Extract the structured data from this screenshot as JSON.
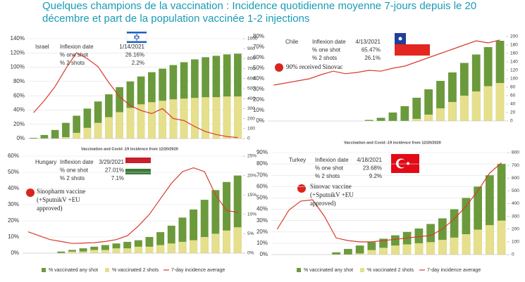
{
  "title": [
    "Quelques champions de la vaccination : Incidence quotidienne moyenne 7-jours depuis le 20",
    "décembre et part de  la population vaccinée 1-2 injections"
  ],
  "captions": [
    "Vaccination and Covid -19 incidence from 12/20/2020",
    "Vaccination and Covid -19 incidence from 12/20/2020"
  ],
  "chart_data": [
    {
      "type": "bar-line",
      "country": "Israel",
      "info": [
        [
          "Inflexion date",
          "1/14/2021"
        ],
        [
          "% one shot",
          "26.16%"
        ],
        [
          "% 2 shots",
          "2.2%"
        ]
      ],
      "categories": [
        null,
        null,
        null,
        null,
        null,
        null,
        null,
        null,
        null,
        null,
        null,
        null,
        null,
        null,
        null,
        null,
        null,
        null,
        null,
        null
      ],
      "ylim": [
        0,
        140
      ],
      "yticks": [
        {
          "value": 0,
          "label": "0%"
        },
        {
          "value": 20,
          "label": "20%"
        },
        {
          "value": 40,
          "label": "40%"
        },
        {
          "value": 60,
          "label": "60%"
        },
        {
          "value": 80,
          "label": "80%"
        },
        {
          "value": 100,
          "label": "100%"
        },
        {
          "value": 120,
          "label": "120%"
        },
        {
          "value": 140,
          "label": "140%"
        }
      ],
      "y2lim": [
        0,
        1000
      ],
      "y2ticks": [
        0,
        100,
        200,
        300,
        400,
        500,
        600,
        700,
        800,
        900,
        1000
      ],
      "grid": true,
      "legend": false,
      "series": [
        {
          "color": "#6b9a3c",
          "values": [
            1,
            5,
            12,
            22,
            32,
            42,
            52,
            62,
            72,
            80,
            87,
            93,
            98,
            103,
            107,
            111,
            114,
            116,
            118,
            119
          ]
        },
        {
          "color": "#e6df8c",
          "values": [
            0,
            0,
            0,
            2,
            8,
            15,
            22,
            30,
            37,
            43,
            48,
            51,
            53,
            55,
            56,
            57,
            58,
            58,
            59,
            59
          ]
        },
        {
          "color": "#d93a2b",
          "axis": "y2",
          "values": [
            260,
            380,
            520,
            700,
            860,
            800,
            720,
            560,
            420,
            330,
            280,
            250,
            300,
            200,
            180,
            120,
            70,
            40,
            20,
            10
          ]
        }
      ]
    },
    {
      "type": "bar-line",
      "country": "Chile",
      "info": [
        [
          "Inflexion date",
          "4/13/2021"
        ],
        [
          "% one shot",
          "65.47%"
        ],
        [
          "% 2 shots",
          "26.1%"
        ]
      ],
      "note": [
        "90% received Sinovac"
      ],
      "categories": [
        null,
        null,
        null,
        null,
        null,
        null,
        null,
        null,
        null,
        null,
        null,
        null,
        null,
        null,
        null,
        null,
        null,
        null,
        null,
        null
      ],
      "ylim": [
        0,
        80
      ],
      "yticks": [
        {
          "value": 0,
          "label": "0%"
        },
        {
          "value": 10,
          "label": "10%"
        },
        {
          "value": 20,
          "label": "20%"
        },
        {
          "value": 30,
          "label": "30%"
        },
        {
          "value": 40,
          "label": "40%"
        },
        {
          "value": 50,
          "label": "50%"
        },
        {
          "value": 60,
          "label": "60%"
        },
        {
          "value": 70,
          "label": "70%"
        },
        {
          "value": 80,
          "label": "80%"
        }
      ],
      "y2lim": [
        0,
        200
      ],
      "y2ticks": [
        0,
        20,
        40,
        60,
        80,
        100,
        120,
        140,
        160,
        180,
        200
      ],
      "grid": false,
      "legend": false,
      "series": [
        {
          "color": "#6b9a3c",
          "values": [
            0,
            0,
            0,
            0,
            0,
            0,
            0,
            0,
            1,
            3,
            8,
            14,
            22,
            30,
            38,
            46,
            55,
            63,
            70,
            76
          ]
        },
        {
          "color": "#e6df8c",
          "values": [
            0,
            0,
            0,
            0,
            0,
            0,
            0,
            0,
            0,
            0,
            0,
            0,
            2,
            6,
            12,
            18,
            24,
            28,
            33,
            36
          ]
        },
        {
          "color": "#d93a2b",
          "axis": "y2",
          "values": [
            85,
            90,
            95,
            100,
            110,
            118,
            112,
            115,
            120,
            118,
            125,
            130,
            140,
            150,
            160,
            170,
            180,
            190,
            185,
            192
          ]
        }
      ]
    },
    {
      "type": "bar-line",
      "country": "Hungary",
      "info": [
        [
          "Inflexion date",
          "3/29/2021"
        ],
        [
          "% one shot",
          "27.01%"
        ],
        [
          "% 2 shots",
          "7.1%"
        ]
      ],
      "note": [
        "Sinopharm vaccine",
        "(+SputnikV +EU",
        "approved)"
      ],
      "categories": [
        null,
        null,
        null,
        null,
        null,
        null,
        null,
        null,
        null,
        null,
        null,
        null,
        null,
        null,
        null,
        null,
        null,
        null,
        null,
        null
      ],
      "ylim": [
        0,
        60
      ],
      "yticks": [
        {
          "value": 0,
          "label": "0%"
        },
        {
          "value": 10,
          "label": "10%"
        },
        {
          "value": 20,
          "label": "20%"
        },
        {
          "value": 30,
          "label": "30%"
        },
        {
          "value": 40,
          "label": "40%"
        },
        {
          "value": 50,
          "label": "50%"
        },
        {
          "value": 60,
          "label": "60%"
        }
      ],
      "y2lim": [
        0,
        25
      ],
      "y2ticks": [
        {
          "value": 0,
          "label": "0%"
        },
        {
          "value": 5,
          "label": "5%"
        },
        {
          "value": 10,
          "label": "10%"
        },
        {
          "value": 15,
          "label": "15%"
        },
        {
          "value": 20,
          "label": "20%"
        },
        {
          "value": 25,
          "label": "25%"
        }
      ],
      "grid": true,
      "legend": true,
      "series": [
        {
          "name": "% vaccinated any shot",
          "color": "#6b9a3c",
          "values": [
            0,
            0,
            0,
            1,
            2,
            3,
            4,
            5,
            6,
            7,
            8,
            10,
            13,
            17,
            22,
            27,
            33,
            39,
            44,
            48
          ]
        },
        {
          "name": "% vaccinated 2 shots",
          "color": "#e6df8c",
          "values": [
            0,
            0,
            0,
            0,
            1,
            1,
            2,
            2,
            3,
            3,
            4,
            4,
            5,
            6,
            7,
            8,
            10,
            12,
            14,
            16
          ]
        },
        {
          "name": "7-day incidence average",
          "color": "#d93a2b",
          "axis": "y2",
          "values": [
            5.5,
            4.5,
            3.5,
            3,
            2.5,
            2.6,
            2.7,
            3,
            3.5,
            4.5,
            7,
            10,
            14,
            18,
            21,
            22,
            21,
            15,
            11,
            10.5
          ]
        }
      ]
    },
    {
      "type": "bar-line",
      "country": "Turkey",
      "info": [
        [
          "Inflexion date",
          "4/18/2021"
        ],
        [
          "% one shot",
          "23.68%"
        ],
        [
          "% 2 shots",
          "9.2%"
        ]
      ],
      "note": [
        "Sinovac vaccine",
        "(+SputnikV +EU",
        "approved)"
      ],
      "categories": [
        null,
        null,
        null,
        null,
        null,
        null,
        null,
        null,
        null,
        null,
        null,
        null,
        null,
        null,
        null,
        null,
        null,
        null,
        null,
        null
      ],
      "ylim": [
        0,
        90
      ],
      "yticks": [
        {
          "value": 0,
          "label": "0%"
        },
        {
          "value": 10,
          "label": "10%"
        },
        {
          "value": 20,
          "label": "20%"
        },
        {
          "value": 30,
          "label": "30%"
        },
        {
          "value": 40,
          "label": "40%"
        },
        {
          "value": 50,
          "label": "50%"
        },
        {
          "value": 60,
          "label": "60%"
        },
        {
          "value": 70,
          "label": "70%"
        },
        {
          "value": 80,
          "label": "80%"
        },
        {
          "value": 90,
          "label": "90%"
        }
      ],
      "y2lim": [
        0,
        800
      ],
      "y2ticks": [
        0,
        100,
        200,
        300,
        400,
        500,
        600,
        700,
        800
      ],
      "grid": true,
      "legend": true,
      "series": [
        {
          "name": "% vaccinated any shot",
          "color": "#6b9a3c",
          "values": [
            0,
            0,
            0,
            0,
            0,
            2,
            5,
            8,
            11,
            14,
            17,
            20,
            23,
            27,
            32,
            40,
            50,
            60,
            70,
            80
          ]
        },
        {
          "name": "% vaccinated 2 shots",
          "color": "#e6df8c",
          "values": [
            0,
            0,
            0,
            0,
            0,
            0,
            0,
            1,
            4,
            6,
            8,
            9,
            10,
            11,
            13,
            15,
            18,
            22,
            26,
            30
          ]
        },
        {
          "name": "7-day incidence average",
          "color": "#d93a2b",
          "axis": "y2",
          "values": [
            200,
            350,
            420,
            430,
            300,
            130,
            110,
            100,
            100,
            110,
            120,
            130,
            140,
            150,
            200,
            280,
            380,
            500,
            640,
            720
          ]
        }
      ]
    }
  ]
}
